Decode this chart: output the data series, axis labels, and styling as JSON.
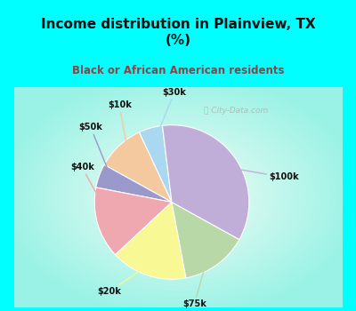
{
  "title": "Income distribution in Plainview, TX\n(%)",
  "subtitle": "Black or African American residents",
  "title_color": "#111111",
  "subtitle_color": "#8b4444",
  "bg_cyan": "#00ffff",
  "labels": [
    "$30k",
    "$10k",
    "$50k",
    "$40k",
    "$20k",
    "$75k",
    "$100k"
  ],
  "sizes": [
    5,
    10,
    5,
    15,
    16,
    14,
    35
  ],
  "colors": [
    "#aad8f0",
    "#f5c9a0",
    "#9999cc",
    "#f0a8b0",
    "#f8f895",
    "#b8d8a8",
    "#c0aed8"
  ],
  "startangle": 97,
  "watermark": "ⓘ City-Data.com"
}
